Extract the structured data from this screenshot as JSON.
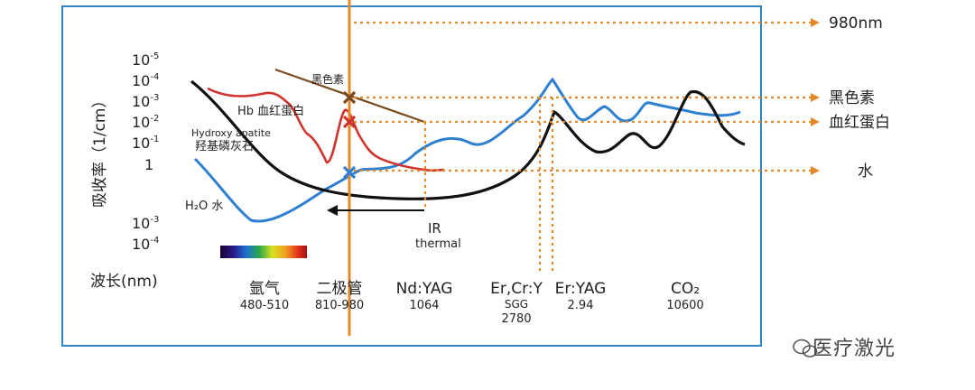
{
  "y_axis": {
    "title": "吸收率（1/cm）",
    "ticks_upper": [
      {
        "base": "10",
        "exp": "-5"
      },
      {
        "base": "10",
        "exp": "-4"
      },
      {
        "base": "10",
        "exp": "-3"
      },
      {
        "base": "10",
        "exp": "-2"
      },
      {
        "base": "10",
        "exp": "-1"
      },
      {
        "base": "1",
        "exp": ""
      }
    ],
    "ticks_lower": [
      {
        "base": "10",
        "exp": "-3"
      },
      {
        "base": "10",
        "exp": "-4"
      }
    ]
  },
  "x_axis": {
    "title": "波长(nm)",
    "lasers": [
      {
        "name": "氩气",
        "value": "480-510"
      },
      {
        "name": "二极管",
        "value": "810-980"
      },
      {
        "name": "Nd:YAG",
        "value": "1064"
      },
      {
        "name": "Er,Cr:Y",
        "sub": "SGG",
        "value": "2780"
      },
      {
        "name": "Er:YAG",
        "value": "2.94"
      },
      {
        "name": "CO₂",
        "value": "10600"
      }
    ]
  },
  "curve_labels": {
    "melanin": "黑色素",
    "hb": "Hb 血红蛋白",
    "hydroxy_en": "Hydroxy apatite",
    "hydroxy_cn": "羟基磷灰石",
    "water": "H₂O 水"
  },
  "ir_label": {
    "line1": "IR",
    "line2": "thermal"
  },
  "right_labels": {
    "nm980": "980nm",
    "melanin": "黑色素",
    "hb": "血红蛋白",
    "water": "水"
  },
  "watermark": "医疗激光",
  "colors": {
    "frame": "#2f86c0",
    "orange": "#e28a2b",
    "melanin": "#7a4a1e",
    "hb": "#d0322d",
    "water": "#2f7fd0",
    "hydroxy": "#111111"
  }
}
